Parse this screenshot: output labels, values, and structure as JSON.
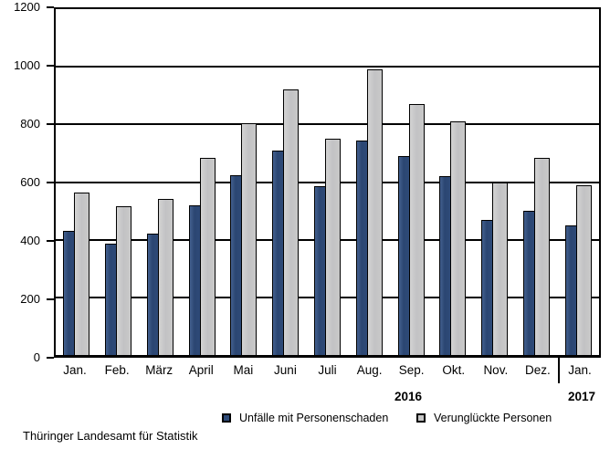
{
  "chart_data": {
    "type": "bar",
    "title": "",
    "categories": [
      "Jan.",
      "Feb.",
      "März",
      "April",
      "Mai",
      "Juni",
      "Juli",
      "Aug.",
      "Sep.",
      "Okt.",
      "Nov.",
      "Dez.",
      "Jan."
    ],
    "series": [
      {
        "name": "Unfälle mit Personenschaden",
        "color": "#2E4A78",
        "values": [
          430,
          385,
          420,
          520,
          625,
          710,
          585,
          745,
          690,
          620,
          470,
          500,
          450
        ]
      },
      {
        "name": "Verunglückte Personen",
        "color": "#C6C6C6",
        "values": [
          565,
          515,
          540,
          685,
          805,
          920,
          750,
          990,
          870,
          810,
          600,
          685,
          590
        ]
      }
    ],
    "xlabel": "",
    "ylabel": "",
    "ylim": [
      0,
      1200
    ],
    "ytick_step": 200,
    "ytick_labels": [
      "0",
      "200",
      "400",
      "600",
      "800",
      "1000",
      "1200"
    ],
    "grid": "horizontal",
    "grid_color": "#000000",
    "legend_position": "bottom",
    "year_labels": {
      "left": "2016",
      "right": "2017"
    },
    "year_separator_after_category_index": 11,
    "source": "Thüringer Landesamt für Statistik"
  }
}
